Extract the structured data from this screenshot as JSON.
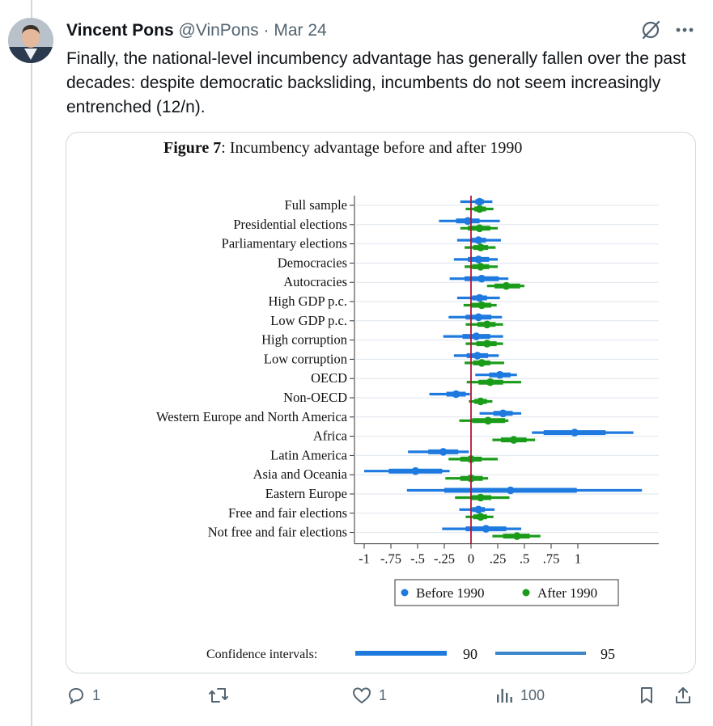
{
  "tweet": {
    "author_name": "Vincent Pons",
    "author_handle": "@VinPons",
    "separator": "·",
    "date": "Mar 24",
    "text": "Finally, the national-level incumbency advantage has generally fallen over the past decades: despite democratic backsliding, incumbents do not seem increasingly entrenched (12/n)."
  },
  "figure": {
    "title_bold": "Figure 7",
    "title_rest": ": Incumbency advantage before and after 1990",
    "ci_label": "Confidence intervals:",
    "ci_90": "90",
    "ci_95": "95"
  },
  "chart_data": {
    "type": "scatter",
    "orientation": "horizontal",
    "title": "Figure 7: Incumbency advantage before and after 1990",
    "xlim": [
      -1,
      1
    ],
    "x_ticks": [
      "-1",
      "-.75",
      "-.5",
      "-.25",
      "0",
      ".25",
      ".5",
      ".75",
      "1"
    ],
    "reference_line": 0,
    "categories": [
      "Full sample",
      "Presidential elections",
      "Parliamentary elections",
      "Democracies",
      "Autocracies",
      "High GDP p.c.",
      "Low GDP p.c.",
      "High corruption",
      "Low corruption",
      "OECD",
      "Non-OECD",
      "Western Europe and North America",
      "Africa",
      "Latin America",
      "Asia and Oceania",
      "Eastern Europe",
      "Free and fair elections",
      "Not free and fair elections"
    ],
    "legend": {
      "position": "bottom",
      "entries": [
        "Before 1990",
        "After 1990"
      ]
    },
    "series": [
      {
        "name": "Before 1990",
        "color": "#1f7ae0",
        "estimate": [
          0.08,
          -0.03,
          0.07,
          0.07,
          0.1,
          0.08,
          0.07,
          0.05,
          0.06,
          0.27,
          -0.14,
          0.3,
          0.97,
          -0.26,
          -0.52,
          0.37,
          0.07,
          0.14
        ],
        "ci90_low": [
          0.04,
          -0.14,
          0.0,
          -0.03,
          -0.06,
          0.01,
          -0.05,
          -0.08,
          -0.04,
          0.17,
          -0.23,
          0.21,
          0.68,
          -0.4,
          -0.77,
          -0.25,
          0.01,
          -0.05
        ],
        "ci90_high": [
          0.12,
          0.08,
          0.14,
          0.17,
          0.26,
          0.15,
          0.19,
          0.18,
          0.16,
          0.37,
          -0.05,
          0.39,
          1.26,
          -0.12,
          -0.27,
          0.99,
          0.13,
          0.33
        ],
        "ci95_low": [
          -0.1,
          -0.3,
          -0.13,
          -0.16,
          -0.2,
          -0.13,
          -0.21,
          -0.26,
          -0.16,
          0.04,
          -0.39,
          0.08,
          0.57,
          -0.59,
          -1.0,
          -0.6,
          -0.11,
          -0.27
        ],
        "ci95_high": [
          0.2,
          0.27,
          0.28,
          0.25,
          0.35,
          0.27,
          0.29,
          0.3,
          0.26,
          0.43,
          -0.01,
          0.47,
          1.52,
          -0.02,
          -0.2,
          1.6,
          0.22,
          0.47
        ]
      },
      {
        "name": "After 1990",
        "color": "#1a9c1a",
        "estimate": [
          0.08,
          0.08,
          0.09,
          0.09,
          0.33,
          0.1,
          0.15,
          0.15,
          0.1,
          0.18,
          0.09,
          0.16,
          0.4,
          0.0,
          0.0,
          0.09,
          0.09,
          0.43
        ],
        "ci90_low": [
          0.03,
          -0.03,
          0.02,
          0.01,
          0.22,
          0.0,
          0.06,
          0.05,
          0.02,
          0.07,
          0.03,
          0.01,
          0.28,
          -0.1,
          -0.1,
          0.0,
          0.02,
          0.3
        ],
        "ci90_high": [
          0.14,
          0.18,
          0.16,
          0.17,
          0.46,
          0.19,
          0.23,
          0.24,
          0.18,
          0.3,
          0.15,
          0.32,
          0.52,
          0.1,
          0.11,
          0.19,
          0.15,
          0.55
        ],
        "ci95_low": [
          -0.05,
          -0.1,
          -0.06,
          -0.06,
          0.15,
          -0.07,
          -0.05,
          -0.05,
          -0.06,
          -0.04,
          -0.02,
          -0.11,
          0.2,
          -0.21,
          -0.24,
          -0.15,
          -0.05,
          0.2
        ],
        "ci95_high": [
          0.21,
          0.25,
          0.23,
          0.25,
          0.5,
          0.24,
          0.3,
          0.3,
          0.31,
          0.47,
          0.2,
          0.35,
          0.6,
          0.25,
          0.16,
          0.36,
          0.21,
          0.65
        ]
      }
    ]
  },
  "actions": {
    "reply_count": "1",
    "retweet_count": "",
    "like_count": "1",
    "views_count": "100"
  },
  "icons": [
    "reply-icon",
    "retweet-icon",
    "like-icon",
    "views-icon",
    "bookmark-icon",
    "share-icon",
    "more-icon",
    "grok-icon"
  ]
}
